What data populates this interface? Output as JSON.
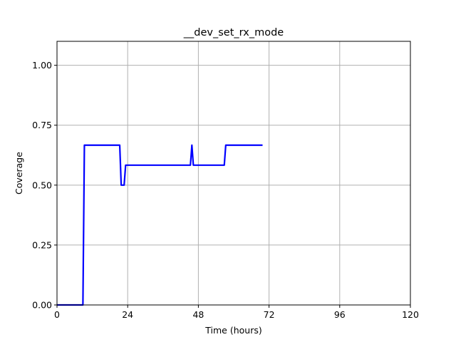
{
  "chart_data": {
    "type": "line",
    "title": "__dev_set_rx_mode",
    "xlabel": "Time (hours)",
    "ylabel": "Coverage",
    "xlim": [
      0,
      120
    ],
    "ylim": [
      0,
      1.1
    ],
    "xticks": [
      0,
      24,
      48,
      72,
      96,
      120
    ],
    "yticks": [
      0.0,
      0.25,
      0.5,
      0.75,
      1.0
    ],
    "xtick_labels": [
      "0",
      "24",
      "48",
      "72",
      "96",
      "120"
    ],
    "ytick_labels": [
      "0.00",
      "0.25",
      "0.50",
      "0.75",
      "1.00"
    ],
    "grid": true,
    "series": [
      {
        "color": "#0000ff",
        "x": [
          0,
          8.8,
          9.3,
          21.3,
          21.8,
          22.8,
          23.3,
          45.3,
          45.8,
          46.3,
          56.8,
          57.3,
          69.8
        ],
        "y": [
          0.0,
          0.0,
          0.6667,
          0.6667,
          0.5,
          0.5,
          0.5833,
          0.5833,
          0.6667,
          0.5833,
          0.5833,
          0.6667,
          0.6667
        ]
      }
    ]
  }
}
